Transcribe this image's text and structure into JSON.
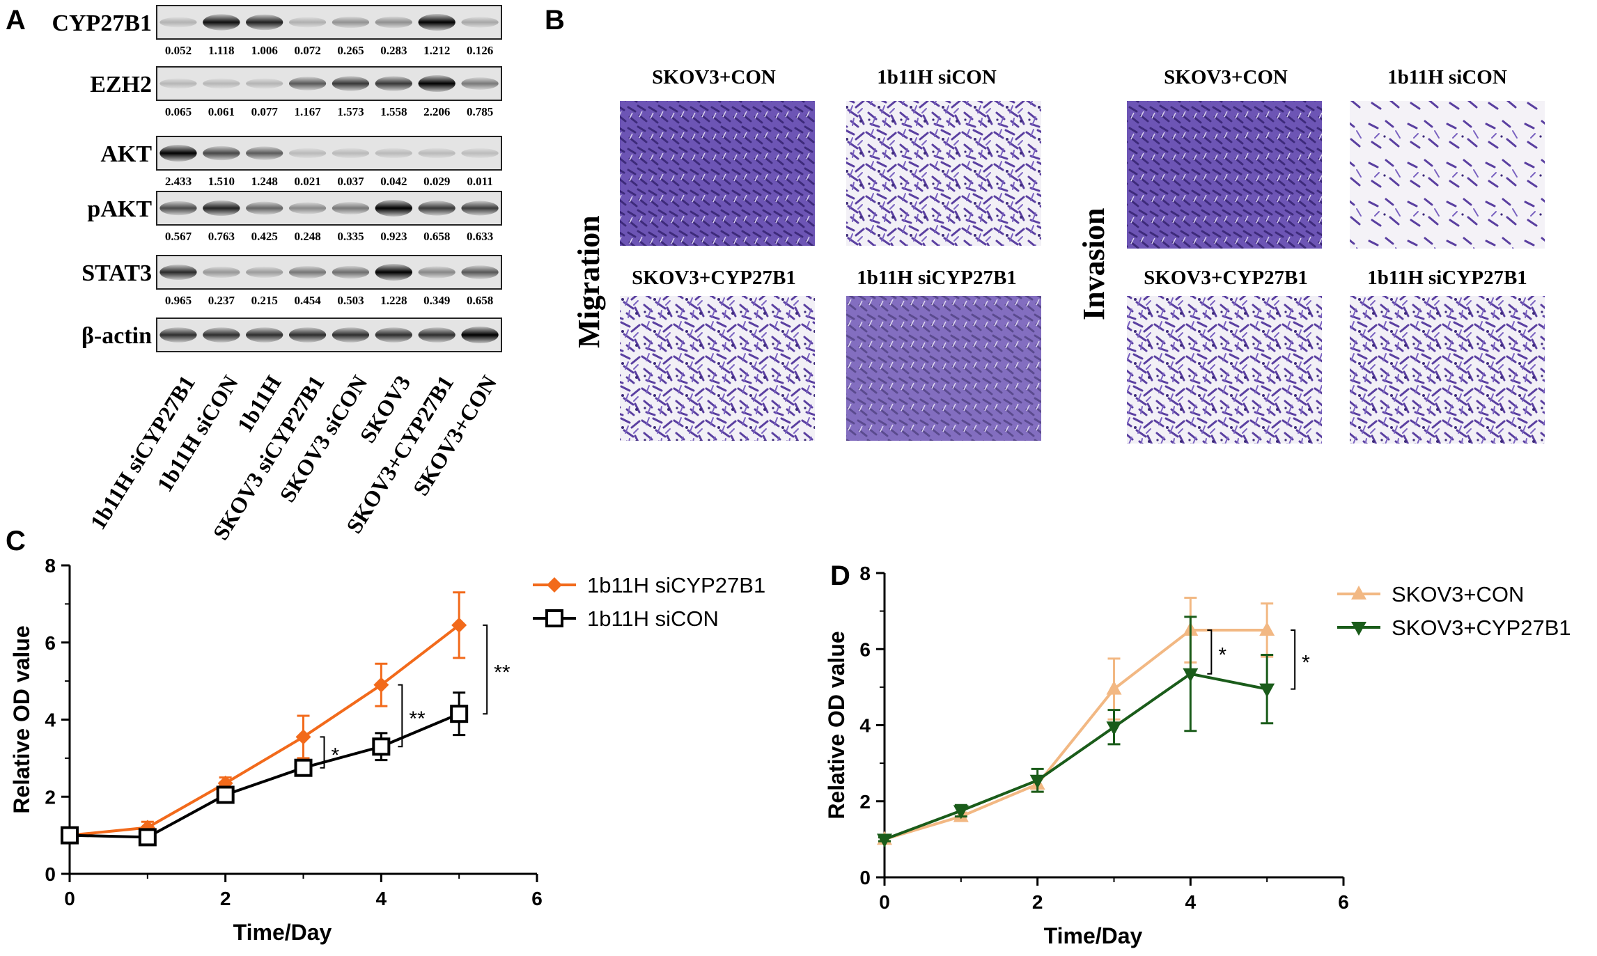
{
  "panels": {
    "A": "A",
    "B": "B",
    "C": "C",
    "D": "D"
  },
  "western_blot": {
    "rows": [
      {
        "label": "CYP27B1",
        "values": [
          "0.052",
          "1.118",
          "1.006",
          "0.072",
          "0.265",
          "0.283",
          "1.212",
          "0.126"
        ]
      },
      {
        "label": "EZH2",
        "values": [
          "0.065",
          "0.061",
          "0.077",
          "1.167",
          "1.573",
          "1.558",
          "2.206",
          "0.785"
        ]
      },
      {
        "label": "AKT",
        "values": [
          "2.433",
          "1.510",
          "1.248",
          "0.021",
          "0.037",
          "0.042",
          "0.029",
          "0.011"
        ]
      },
      {
        "label": "pAKT",
        "values": [
          "0.567",
          "0.763",
          "0.425",
          "0.248",
          "0.335",
          "0.923",
          "0.658",
          "0.633"
        ]
      },
      {
        "label": "STAT3",
        "values": [
          "0.965",
          "0.237",
          "0.215",
          "0.454",
          "0.503",
          "1.228",
          "0.349",
          "0.658"
        ]
      },
      {
        "label": "β-actin",
        "values": []
      }
    ],
    "lanes": [
      "1b11H siCYP27B1",
      "1b11H siCON",
      "1b11H",
      "SKOV3 siCYP27B1",
      "SKOV3 siCON",
      "SKOV3",
      "SKOV3+CYP27B1",
      "SKOV3+CON"
    ]
  },
  "transwell": {
    "migration_label": "Migration",
    "invasion_label": "Invasion",
    "conditions": [
      "SKOV3+CON",
      "1b11H siCON",
      "SKOV3+CYP27B1",
      "1b11H siCYP27B1"
    ],
    "stain_color": "#5a3fa0"
  },
  "chart_data": [
    {
      "type": "line",
      "title": "",
      "xlabel": "Time/Day",
      "ylabel": "Relative OD value",
      "xlim": [
        0,
        6
      ],
      "ylim": [
        0,
        8
      ],
      "xticks": [
        "0",
        "2",
        "4",
        "6"
      ],
      "yticks": [
        "0",
        "2",
        "4",
        "6",
        "8"
      ],
      "x": [
        0,
        1,
        2,
        3,
        4,
        5
      ],
      "series": [
        {
          "name": "1b11H siCYP27B1",
          "color": "#f26a1b",
          "marker": "diamond",
          "values": [
            1.0,
            1.2,
            2.35,
            3.55,
            4.9,
            6.45
          ],
          "errors": [
            0.05,
            0.15,
            0.15,
            0.55,
            0.55,
            0.85
          ]
        },
        {
          "name": "1b11H siCON",
          "color": "#000000",
          "marker": "open-square",
          "values": [
            1.0,
            0.95,
            2.05,
            2.75,
            3.3,
            4.15
          ],
          "errors": [
            0.05,
            0.08,
            0.1,
            0.15,
            0.35,
            0.55
          ]
        }
      ],
      "significance": [
        {
          "x": 3,
          "label": "*",
          "y1": 2.75,
          "y2": 3.55
        },
        {
          "x": 4,
          "label": "**",
          "y1": 3.3,
          "y2": 4.9
        },
        {
          "x": 5,
          "label": "**",
          "y1": 4.15,
          "y2": 6.45
        }
      ],
      "legend": "top-right"
    },
    {
      "type": "line",
      "title": "",
      "xlabel": "Time/Day",
      "ylabel": "Relative OD value",
      "xlim": [
        0,
        6
      ],
      "ylim": [
        0,
        8
      ],
      "xticks": [
        "0",
        "2",
        "4",
        "6"
      ],
      "yticks": [
        "0",
        "2",
        "4",
        "6",
        "8"
      ],
      "x": [
        0,
        1,
        2,
        3,
        4,
        5
      ],
      "series": [
        {
          "name": "SKOV3+CON",
          "color": "#f2b883",
          "marker": "triangle-up",
          "values": [
            1.0,
            1.6,
            2.45,
            4.95,
            6.5,
            6.5
          ],
          "errors": [
            0.05,
            0.1,
            0.2,
            0.8,
            0.85,
            0.7
          ]
        },
        {
          "name": "SKOV3+CYP27B1",
          "color": "#1a5c1a",
          "marker": "triangle-down",
          "values": [
            1.0,
            1.75,
            2.55,
            3.95,
            5.35,
            4.95
          ],
          "errors": [
            0.05,
            0.15,
            0.3,
            0.45,
            1.5,
            0.9
          ]
        }
      ],
      "significance": [
        {
          "x": 4,
          "label": "*",
          "y1": 5.35,
          "y2": 6.5
        },
        {
          "x": 5,
          "label": "*",
          "y1": 4.95,
          "y2": 6.5
        }
      ],
      "legend": "top-right"
    }
  ]
}
